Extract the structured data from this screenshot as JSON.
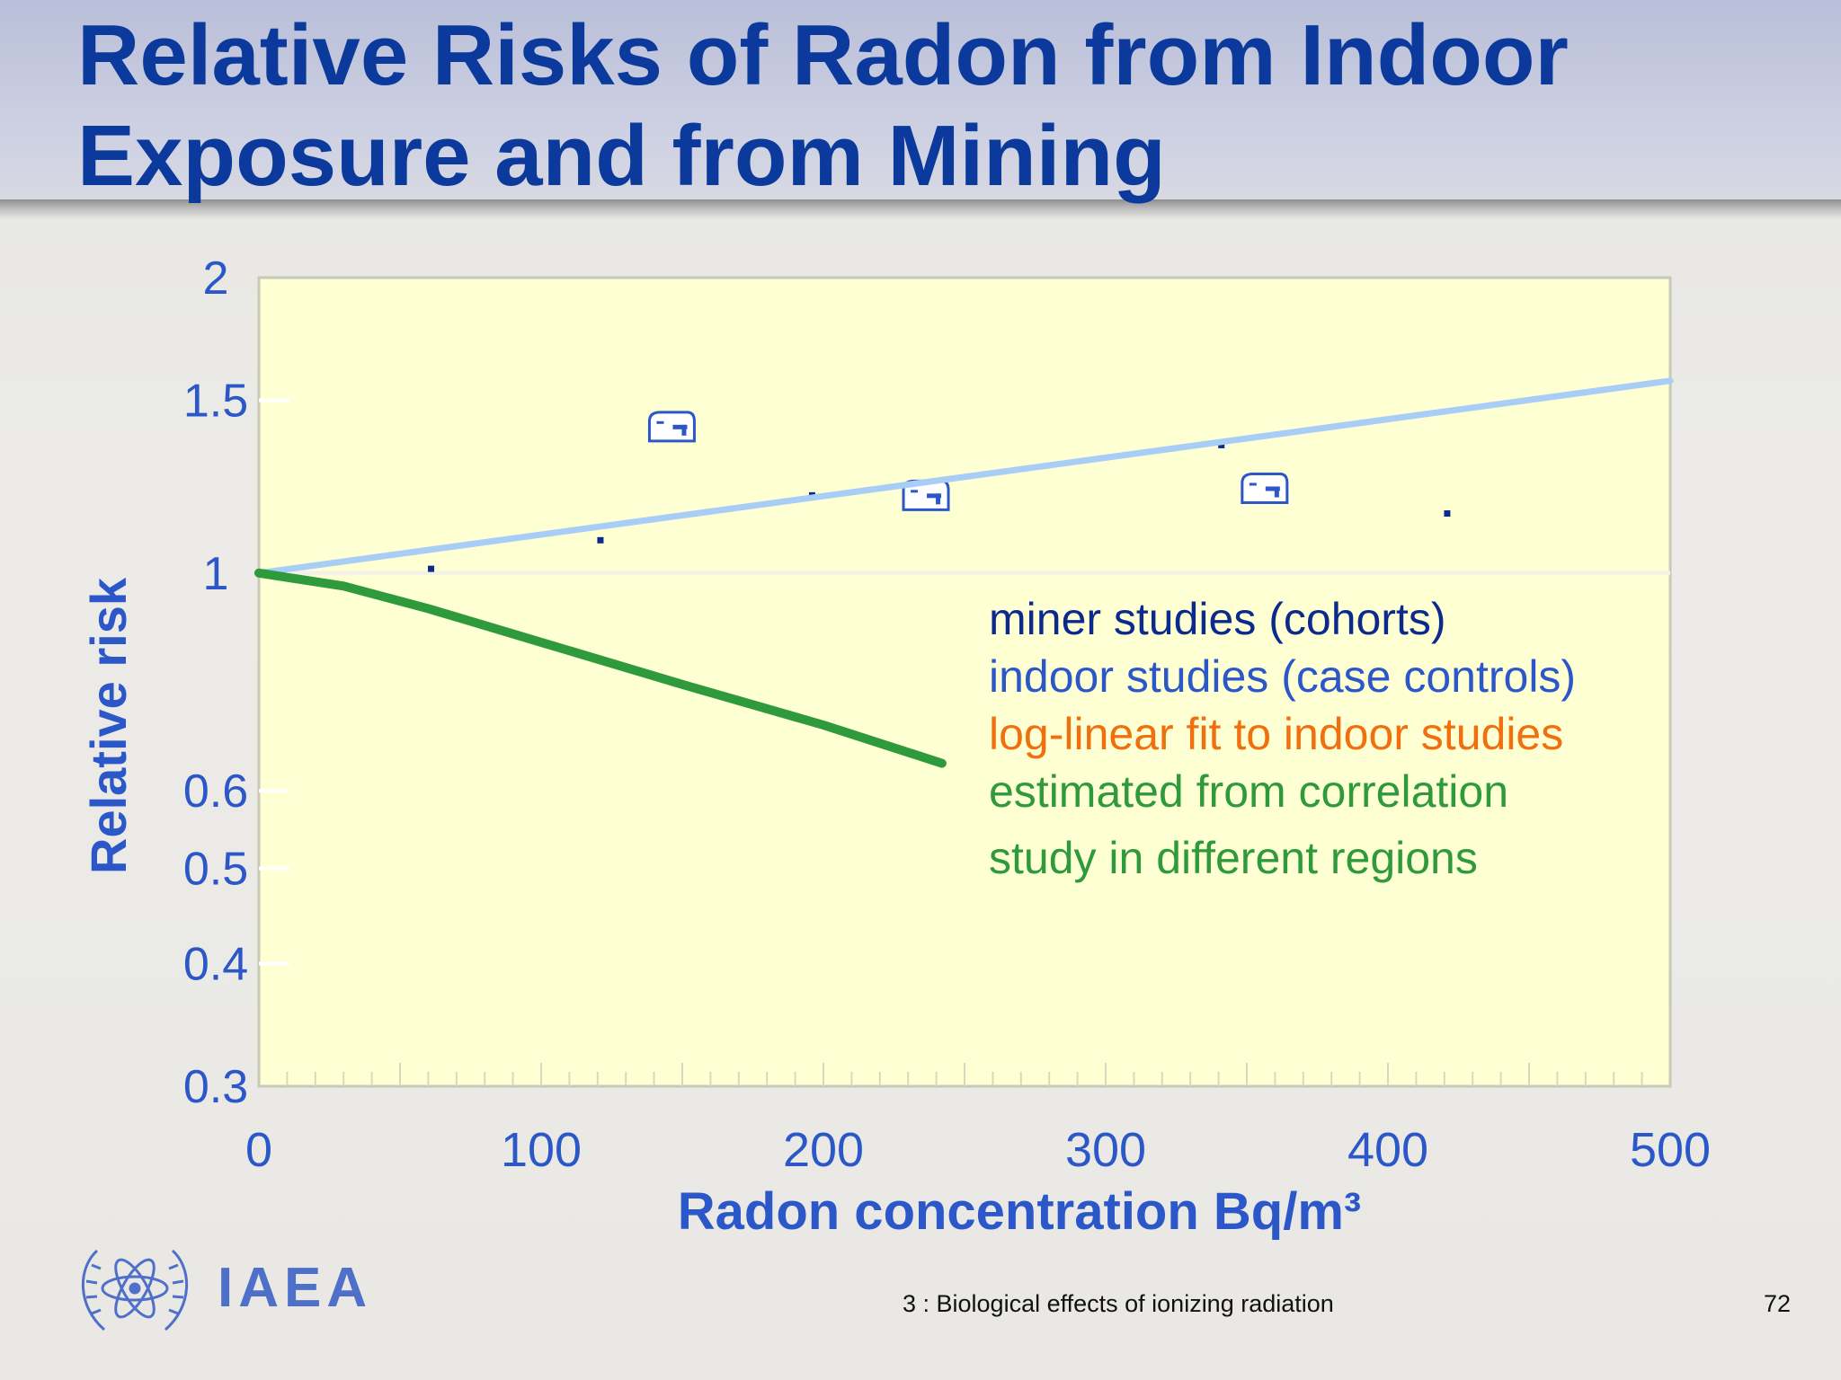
{
  "title": {
    "line1": "Relative Risks of Radon from Indoor",
    "line2": "Exposure and from Mining"
  },
  "chart_data": {
    "type": "line",
    "xlabel": "Radon concentration Bq/m³",
    "ylabel": "Relative risk",
    "xlim": [
      0,
      500
    ],
    "ylim": [
      0.3,
      2
    ],
    "y_scale": "log",
    "x_ticks": [
      0,
      100,
      200,
      300,
      400,
      500
    ],
    "x_tick_labels": [
      "0",
      "100",
      "200",
      "300",
      "400",
      "500"
    ],
    "y_ticks": [
      0.3,
      0.4,
      0.5,
      0.6,
      1,
      1.5,
      2
    ],
    "y_tick_labels": [
      "0.3",
      "0.4",
      "0.5",
      "0.6",
      "1",
      "1.5",
      "2"
    ],
    "grid": false,
    "background": "#ffffd4",
    "series": [
      {
        "name": "miner studies (cohorts)",
        "color": "#0b2a8c",
        "marker": "square",
        "points": [
          [
            61,
            1.01
          ],
          [
            121,
            1.08
          ],
          [
            196,
            1.2
          ],
          [
            341,
            1.35
          ],
          [
            421,
            1.15
          ]
        ]
      },
      {
        "name": "indoor studies (case controls)",
        "color": "#2b57c8",
        "marker": "house-icon",
        "points": [
          [
            146,
            1.41
          ],
          [
            236,
            1.2
          ],
          [
            356,
            1.22
          ]
        ]
      },
      {
        "name": "log-linear fit to indoor studies",
        "color": "#a8cdf7",
        "legend_color": "#f07010",
        "points": [
          [
            0,
            1.0
          ],
          [
            500,
            1.57
          ]
        ]
      },
      {
        "name": "estimated from correlation study in different regions",
        "color": "#2e9a3c",
        "points": [
          [
            0,
            1.0
          ],
          [
            30,
            0.97
          ],
          [
            60,
            0.92
          ],
          [
            100,
            0.85
          ],
          [
            150,
            0.77
          ],
          [
            200,
            0.7
          ],
          [
            242,
            0.64
          ]
        ]
      }
    ],
    "legend": {
      "placement": "inside-right",
      "items": [
        {
          "text": "miner studies (cohorts)",
          "color": "#0b2a8c"
        },
        {
          "text": "indoor studies (case controls)",
          "color": "#2b57c8"
        },
        {
          "text": "log-linear fit to indoor studies",
          "color": "#f07010"
        },
        {
          "text": "estimated from correlation",
          "color": "#2e9a3c"
        },
        {
          "text": "study in different regions",
          "color": "#2e9a3c"
        }
      ]
    }
  },
  "logo": {
    "text": "IAEA"
  },
  "footer": {
    "text": "3 : Biological effects of ionizing radiation",
    "page": "72"
  },
  "colors": {
    "title": "#0b3a9c",
    "axis_text": "#2b57c8",
    "header_band": "#c3c8df"
  }
}
